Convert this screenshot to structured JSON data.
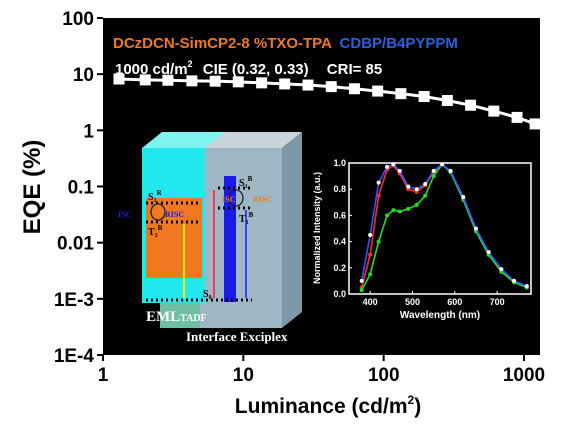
{
  "chart_data": {
    "type": "scatter",
    "xlabel": "Luminance (cd/m",
    "xlabel_sup": "2",
    "xlabel_end": ")",
    "ylabel": "EQE (%)",
    "x_scale": "log",
    "y_scale": "log",
    "xlim": [
      1,
      1300
    ],
    "ylim": [
      0.0001,
      100
    ],
    "x_ticks": [
      1,
      10,
      100,
      1000
    ],
    "x_tick_labels": [
      "1",
      "10",
      "100",
      "1000"
    ],
    "y_ticks": [
      0.0001,
      0.001,
      0.01,
      0.1,
      1,
      10,
      100
    ],
    "y_tick_labels": [
      "1E-4",
      "1E-3",
      "0.01",
      "0.1",
      "1",
      "10",
      "100"
    ],
    "background": "#000000",
    "series": [
      {
        "marker": "square",
        "color": "#ffffff",
        "x": [
          1.3,
          2,
          2.9,
          4.3,
          6.3,
          9.2,
          13.5,
          19.7,
          28.9,
          42.3,
          61.9,
          90.6,
          132.6,
          194.2,
          284.3,
          416.2,
          609.3,
          892,
          1200
        ],
        "y": [
          8.2,
          7.9,
          7.8,
          7.6,
          7.5,
          7.3,
          7.0,
          6.7,
          6.4,
          6.0,
          5.5,
          5.0,
          4.5,
          4.0,
          3.4,
          2.8,
          2.2,
          1.7,
          1.3
        ]
      }
    ],
    "annotations": {
      "line1_a": "DCzDCN-SimCP2-8 %TXO-TPA",
      "line1_b": "CDBP/B4PYPPM",
      "line2": "1000 cd/m",
      "line2_sup": "2",
      "line2_b": "CIE (0.32, 0.33)",
      "line2_c": "CRI= 85",
      "color_a": "#f07820",
      "color_b": "#2a5fe0"
    },
    "inset": {
      "type": "line",
      "xlabel": "Wavelength (nm)",
      "ylabel": "Normalized Intensity (a.u.)",
      "xlim": [
        350,
        780
      ],
      "ylim": [
        0.0,
        1.0
      ],
      "x_ticks": [
        400,
        500,
        600,
        700
      ],
      "y_ticks": [
        0.0,
        0.2,
        0.4,
        0.6,
        0.8,
        1.0
      ],
      "y_tick_labels": [
        "0.0",
        "0.2",
        "0.4",
        "0.6",
        "0.8",
        "1.0"
      ],
      "series": [
        {
          "color": "#ff2a2a",
          "x": [
            380,
            400,
            420,
            440,
            455,
            470,
            490,
            510,
            530,
            550,
            570,
            590,
            620,
            650,
            680,
            710,
            740,
            770
          ],
          "y": [
            0.05,
            0.3,
            0.75,
            0.95,
            0.98,
            0.92,
            0.8,
            0.78,
            0.83,
            0.93,
            0.99,
            0.93,
            0.72,
            0.48,
            0.3,
            0.17,
            0.09,
            0.05
          ]
        },
        {
          "color": "#22dd22",
          "x": [
            380,
            400,
            420,
            440,
            455,
            470,
            490,
            510,
            530,
            550,
            570,
            590,
            620,
            650,
            680,
            710,
            740,
            770
          ],
          "y": [
            0.03,
            0.15,
            0.4,
            0.6,
            0.64,
            0.63,
            0.65,
            0.68,
            0.75,
            0.9,
            0.99,
            0.93,
            0.72,
            0.48,
            0.3,
            0.17,
            0.09,
            0.05
          ]
        },
        {
          "color": "#3355ff",
          "x": [
            380,
            400,
            420,
            440,
            455,
            470,
            490,
            510,
            530,
            550,
            570,
            590,
            620,
            650,
            680,
            710,
            740,
            770
          ],
          "y": [
            0.1,
            0.45,
            0.85,
            0.97,
            0.99,
            0.94,
            0.82,
            0.8,
            0.84,
            0.94,
            0.99,
            0.94,
            0.74,
            0.5,
            0.32,
            0.19,
            0.1,
            0.06
          ]
        }
      ]
    },
    "diagram": {
      "s1r": "S",
      "s1r_sup": "1",
      "s1r_r": "R",
      "t1r": "T",
      "t1r_sub": "1",
      "t1r_r": "R",
      "s1b": "S",
      "s1b_sub": "1",
      "s1b_b": "B",
      "t1b": "T",
      "t1b_sub": "1",
      "t1b_b": "B",
      "s0": "S",
      "s0_sub": "0",
      "isc_left": "ISC",
      "risc_left": "RISC",
      "isc_right": "ISC",
      "risc_right": "RISC",
      "eml": "EML",
      "eml_sub": "TADF",
      "interface": "Interface Exciplex"
    }
  }
}
